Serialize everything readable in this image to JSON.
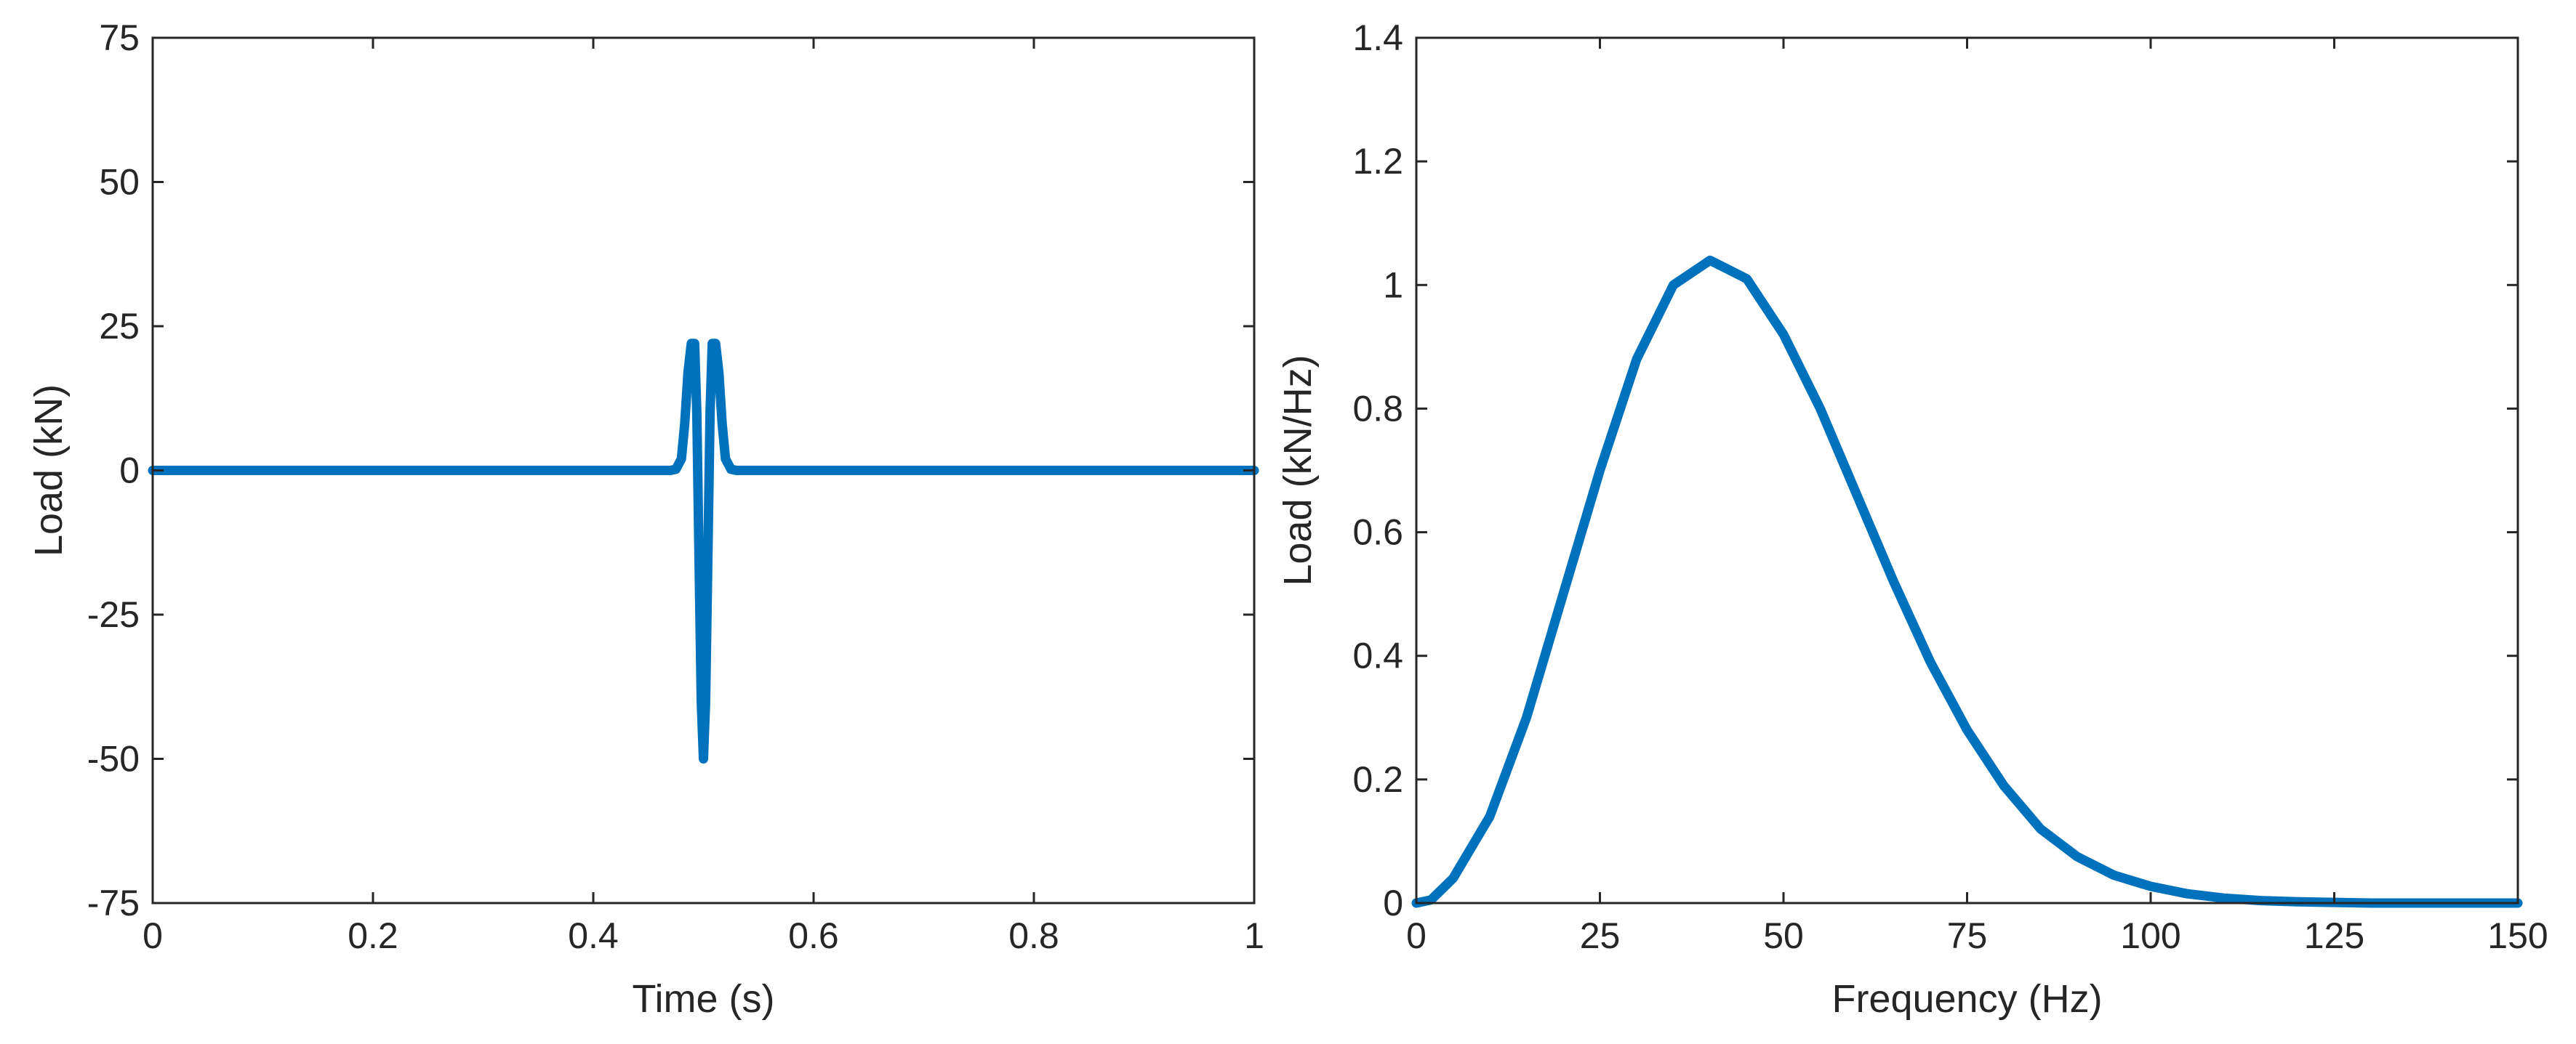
{
  "chart_data": [
    {
      "type": "line",
      "xlabel": "Time (s)",
      "ylabel": "Load (kN)",
      "xlim": [
        0,
        1
      ],
      "ylim": [
        -75,
        75
      ],
      "xticks": [
        0,
        0.2,
        0.4,
        0.6,
        0.8,
        1
      ],
      "xtick_labels": [
        "0",
        "0.2",
        "0.4",
        "0.6",
        "0.8",
        "1"
      ],
      "yticks": [
        -75,
        -50,
        -25,
        0,
        25,
        50,
        75
      ],
      "ytick_labels": [
        "-75",
        "-50",
        "-25",
        "0",
        "25",
        "50",
        "75"
      ],
      "grid": false,
      "color": "#0072BD",
      "series": [
        {
          "x": [
            0,
            0.47,
            0.475,
            0.48,
            0.483,
            0.486,
            0.489,
            0.492,
            0.494,
            0.496,
            0.498,
            0.5,
            0.502,
            0.504,
            0.506,
            0.508,
            0.511,
            0.514,
            0.517,
            0.52,
            0.525,
            0.53,
            1
          ],
          "y": [
            0,
            0,
            0.2,
            2,
            8,
            17,
            22,
            22,
            10,
            -15,
            -40,
            -50,
            -40,
            -15,
            10,
            22,
            22,
            17,
            8,
            2,
            0.2,
            0,
            0
          ]
        }
      ]
    },
    {
      "type": "line",
      "xlabel": "Frequency (Hz)",
      "ylabel": "Load (kN/Hz)",
      "xlim": [
        0,
        150
      ],
      "ylim": [
        0,
        1.4
      ],
      "xticks": [
        0,
        25,
        50,
        75,
        100,
        125,
        150
      ],
      "xtick_labels": [
        "0",
        "25",
        "50",
        "75",
        "100",
        "125",
        "150"
      ],
      "yticks": [
        0,
        0.2,
        0.4,
        0.6,
        0.8,
        1,
        1.2,
        1.4
      ],
      "ytick_labels": [
        "0",
        "0.2",
        "0.4",
        "0.6",
        "0.8",
        "1",
        "1.2",
        "1.4"
      ],
      "grid": false,
      "color": "#0072BD",
      "series": [
        {
          "x": [
            0,
            2,
            5,
            10,
            15,
            20,
            25,
            30,
            35,
            40,
            45,
            50,
            55,
            60,
            65,
            70,
            75,
            80,
            85,
            90,
            95,
            100,
            105,
            110,
            115,
            120,
            125,
            130,
            140,
            150
          ],
          "y": [
            0,
            0.005,
            0.04,
            0.14,
            0.3,
            0.5,
            0.7,
            0.88,
            1.0,
            1.04,
            1.01,
            0.92,
            0.8,
            0.66,
            0.52,
            0.39,
            0.28,
            0.19,
            0.12,
            0.075,
            0.045,
            0.027,
            0.015,
            0.008,
            0.004,
            0.002,
            0.001,
            0,
            0,
            0
          ]
        }
      ]
    }
  ]
}
